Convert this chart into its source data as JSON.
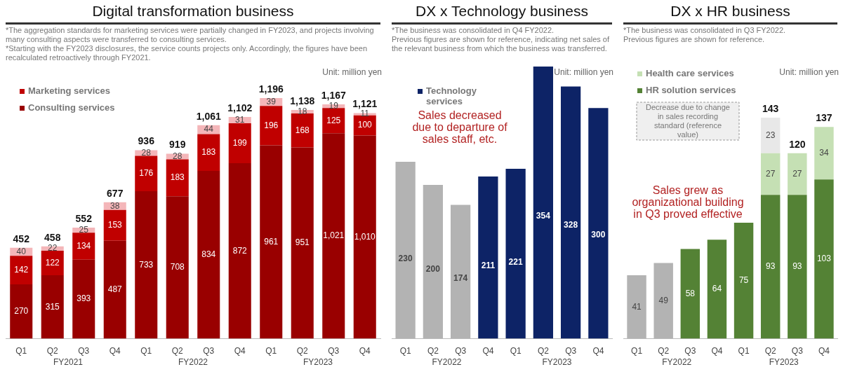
{
  "chart_data": [
    {
      "type": "bar",
      "title": "Digital transformation business",
      "subtitle": "*The aggregation standards for marketing services were partially changed in FY2023, and projects involving many consulting aspects were transferred to consulting services.\n*Starting with the FY2023 disclosures, the service counts projects only. Accordingly, the figures have been recalculated retroactively through FY2021.",
      "ylabel": "Unit: million yen",
      "stacked": true,
      "legend": "top left",
      "categories": [
        "Q1",
        "Q2",
        "Q3",
        "Q4",
        "Q1",
        "Q2",
        "Q3",
        "Q4",
        "Q1",
        "Q2",
        "Q3",
        "Q4"
      ],
      "series": [
        {
          "name": "Consulting services",
          "color": "#990000",
          "values": [
            270,
            315,
            393,
            487,
            733,
            708,
            834,
            872,
            961,
            951,
            1021,
            1010
          ],
          "value_labels": [
            "270",
            "315",
            "393",
            "487",
            "733",
            "708",
            "834",
            "872",
            "961",
            "951",
            "1,021",
            "1,010"
          ]
        },
        {
          "name": "Marketing services",
          "color": "#c00000",
          "values": [
            142,
            122,
            134,
            153,
            176,
            183,
            183,
            199,
            196,
            168,
            125,
            100
          ],
          "value_labels": [
            "142",
            "122",
            "134",
            "153",
            "176",
            "183",
            "183",
            "199",
            "196",
            "168",
            "125",
            "100"
          ]
        },
        {
          "color": "#f4b6b9",
          "values": [
            40,
            22,
            25,
            38,
            28,
            28,
            44,
            31,
            39,
            18,
            19,
            11
          ],
          "value_labels": [
            "40",
            "22",
            "25",
            "38",
            "28",
            "28",
            "44",
            "31",
            "39",
            "18",
            "19",
            "11"
          ]
        }
      ],
      "totals": [
        "452",
        "458",
        "552",
        "677",
        "936",
        "919",
        "1,061",
        "1,102",
        "1,196",
        "1,138",
        "1,167",
        "1,121"
      ],
      "annotations": [
        "FY2021",
        "FY2022",
        "FY2023"
      ]
    },
    {
      "type": "bar",
      "title": "DX x Technology business",
      "subtitle": "*The business was consolidated in Q4 FY2022.\nPrevious figures are shown for reference, indicating net sales of the relevant business from which the business was transferred.",
      "ylabel": "Unit: million yen",
      "legend": "top left",
      "categories": [
        "Q1",
        "Q2",
        "Q3",
        "Q4",
        "Q1",
        "Q2",
        "Q3",
        "Q4"
      ],
      "series": [
        {
          "name": "Technology services",
          "color": "#0d2366",
          "colors": [
            "#b3b3b3",
            "#b3b3b3",
            "#b3b3b3",
            "#0d2366",
            "#0d2366",
            "#0d2366",
            "#0d2366",
            "#0d2366"
          ],
          "values": [
            230,
            200,
            174,
            211,
            221,
            354,
            328,
            300
          ],
          "value_labels": [
            "230",
            "200",
            "174",
            "211",
            "221",
            "354",
            "328",
            "300"
          ]
        }
      ],
      "annotations": [
        "FY2022",
        "FY2023",
        "Sales decreased due to departure of sales staff, etc."
      ]
    },
    {
      "type": "bar",
      "title": "DX x HR business",
      "subtitle": "*The business was consolidated in Q3 FY2022.\nPrevious figures are shown for reference.",
      "ylabel": "Unit: million yen",
      "stacked": true,
      "legend": "top left",
      "categories": [
        "Q1",
        "Q2",
        "Q3",
        "Q4",
        "Q1",
        "Q2",
        "Q3",
        "Q4"
      ],
      "series": [
        {
          "name": "HR solution services",
          "color": "#548235",
          "colors": [
            "#b3b3b3",
            "#b3b3b3",
            "#548235",
            "#548235",
            "#548235",
            "#548235",
            "#548235",
            "#548235"
          ],
          "values": [
            41,
            49,
            58,
            64,
            75,
            93,
            93,
            103
          ],
          "value_labels": [
            "41",
            "49",
            "58",
            "64",
            "75",
            "93",
            "93",
            "103"
          ]
        },
        {
          "name": "Health care services",
          "color": "#c5e0b4",
          "values": [
            null,
            null,
            null,
            null,
            null,
            27,
            27,
            34
          ],
          "value_labels": [
            null,
            null,
            null,
            null,
            null,
            "27",
            "27",
            "34"
          ]
        },
        {
          "color": "#e8e8e8",
          "values": [
            null,
            null,
            null,
            null,
            null,
            23,
            null,
            null
          ],
          "value_labels": [
            null,
            null,
            null,
            null,
            null,
            "23",
            null,
            null
          ]
        }
      ],
      "totals": [
        null,
        null,
        null,
        null,
        null,
        "143",
        "120",
        "137"
      ],
      "annotations": [
        "FY2022",
        "FY2023",
        "Sales grew as organizational building in Q3 proved effective",
        "Decrease due to change in sales recording standard (reference value)"
      ]
    }
  ]
}
